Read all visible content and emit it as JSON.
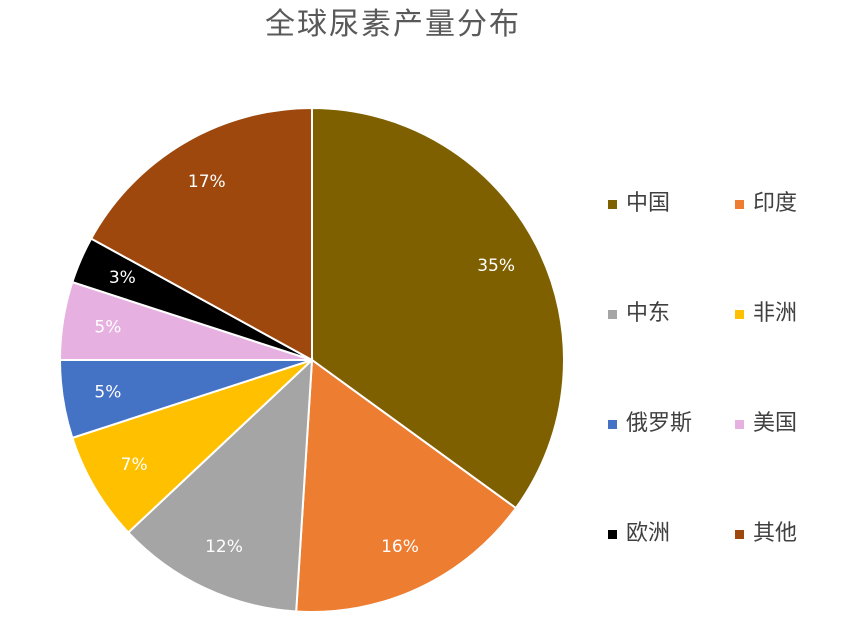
{
  "chart_data": {
    "type": "pie",
    "title": "全球尿素产量分布",
    "categories": [
      "中国",
      "印度",
      "中东",
      "非洲",
      "俄罗斯",
      "美国",
      "欧洲",
      "其他"
    ],
    "values": [
      35,
      16,
      12,
      7,
      5,
      5,
      3,
      17
    ],
    "value_labels": [
      "35%",
      "16%",
      "12%",
      "7%",
      "5%",
      "5%",
      "3%",
      "17%"
    ],
    "colors": [
      "#7f6000",
      "#ed7d31",
      "#a5a5a5",
      "#ffc000",
      "#4472c4",
      "#e6b0e0",
      "#000000",
      "#9e480e"
    ],
    "legend": "right"
  }
}
